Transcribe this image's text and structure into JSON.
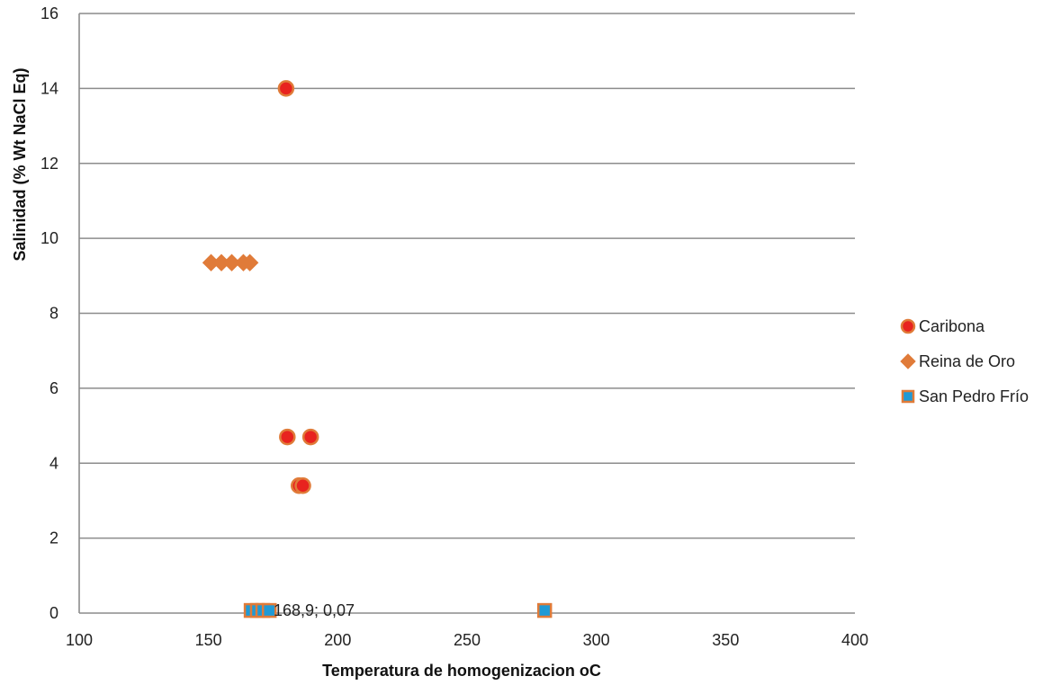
{
  "chart_data": {
    "type": "scatter",
    "xlabel": "Temperatura de homogenizacion oC",
    "ylabel": "Salinidad  (% Wt NaCl Eq)",
    "xlim": [
      100,
      400
    ],
    "ylim": [
      0,
      16
    ],
    "x_ticks": [
      100,
      150,
      200,
      250,
      300,
      350,
      400
    ],
    "y_ticks": [
      0,
      2,
      4,
      6,
      8,
      10,
      12,
      14,
      16
    ],
    "x_tick_labels": [
      "100",
      "150",
      "200",
      "250",
      "300",
      "350",
      "400"
    ],
    "y_tick_labels": [
      "0",
      "2",
      "4",
      "6",
      "8",
      "10",
      "12",
      "14",
      "16"
    ],
    "grid": "horizontal",
    "legend_position": "right",
    "series": [
      {
        "name": "Caribona",
        "marker": "circle",
        "color": "#e8231f",
        "edge_color": "#e07b39",
        "points": [
          {
            "x": 180,
            "y": 14.0
          },
          {
            "x": 180.5,
            "y": 4.7
          },
          {
            "x": 189.5,
            "y": 4.7
          },
          {
            "x": 185,
            "y": 3.4
          },
          {
            "x": 186.5,
            "y": 3.4
          }
        ]
      },
      {
        "name": "Reina de Oro",
        "marker": "diamond",
        "color": "#e07b39",
        "edge_color": "#e07b39",
        "points": [
          {
            "x": 151,
            "y": 9.35
          },
          {
            "x": 155,
            "y": 9.35
          },
          {
            "x": 159,
            "y": 9.35
          },
          {
            "x": 163.5,
            "y": 9.35
          },
          {
            "x": 166,
            "y": 9.35
          }
        ]
      },
      {
        "name": "San Pedro Frío",
        "marker": "square",
        "color": "#1f9ad6",
        "edge_color": "#e07b39",
        "points": [
          {
            "x": 166.5,
            "y": 0.07
          },
          {
            "x": 168.9,
            "y": 0.07
          },
          {
            "x": 171,
            "y": 0.07
          },
          {
            "x": 173.5,
            "y": 0.07
          },
          {
            "x": 280,
            "y": 0.07
          }
        ]
      }
    ],
    "annotations": [
      {
        "text": "168,9; 0,07",
        "x": 168.9,
        "y": 0.07
      }
    ]
  }
}
